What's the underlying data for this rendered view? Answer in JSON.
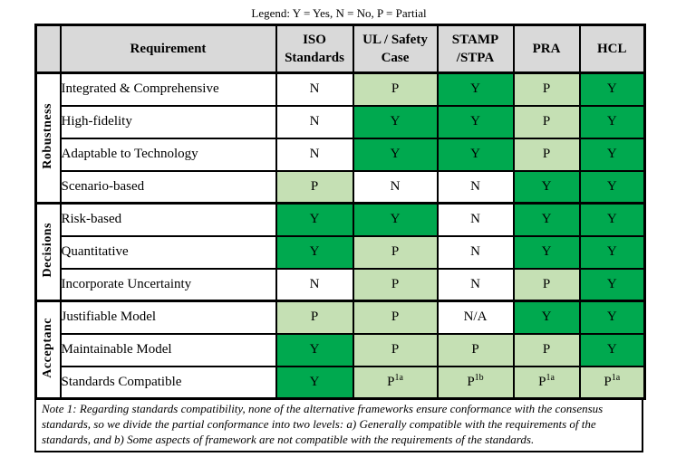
{
  "legend": "Legend: Y = Yes, N = No, P = Partial",
  "colors": {
    "yes": "#00A94F",
    "partial": "#C5E0B4",
    "no": "#FFFFFF",
    "header_bg": "#D9D9D9"
  },
  "table": {
    "header": {
      "requirement": "Requirement",
      "columns": [
        "ISO\nStandards",
        "UL / Safety\nCase",
        "STAMP\n/STPA",
        "PRA",
        "HCL"
      ]
    },
    "groups": [
      {
        "label": "Robustness",
        "rows": [
          {
            "requirement": "Integrated & Comprehensive",
            "cells": [
              {
                "v": "N",
                "bg": "no"
              },
              {
                "v": "P",
                "bg": "partial"
              },
              {
                "v": "Y",
                "bg": "yes"
              },
              {
                "v": "P",
                "bg": "partial"
              },
              {
                "v": "Y",
                "bg": "yes"
              }
            ]
          },
          {
            "requirement": "High-fidelity",
            "cells": [
              {
                "v": "N",
                "bg": "no"
              },
              {
                "v": "Y",
                "bg": "yes"
              },
              {
                "v": "Y",
                "bg": "yes"
              },
              {
                "v": "P",
                "bg": "partial"
              },
              {
                "v": "Y",
                "bg": "yes"
              }
            ]
          },
          {
            "requirement": "Adaptable to Technology",
            "cells": [
              {
                "v": "N",
                "bg": "no"
              },
              {
                "v": "Y",
                "bg": "yes"
              },
              {
                "v": "Y",
                "bg": "yes"
              },
              {
                "v": "P",
                "bg": "partial"
              },
              {
                "v": "Y",
                "bg": "yes"
              }
            ]
          },
          {
            "requirement": "Scenario-based",
            "cells": [
              {
                "v": "P",
                "bg": "partial"
              },
              {
                "v": "N",
                "bg": "no"
              },
              {
                "v": "N",
                "bg": "no"
              },
              {
                "v": "Y",
                "bg": "yes"
              },
              {
                "v": "Y",
                "bg": "yes"
              }
            ]
          }
        ]
      },
      {
        "label": "Decisions",
        "rows": [
          {
            "requirement": "Risk-based",
            "cells": [
              {
                "v": "Y",
                "bg": "yes"
              },
              {
                "v": "Y",
                "bg": "yes"
              },
              {
                "v": "N",
                "bg": "no"
              },
              {
                "v": "Y",
                "bg": "yes"
              },
              {
                "v": "Y",
                "bg": "yes"
              }
            ]
          },
          {
            "requirement": "Quantitative",
            "cells": [
              {
                "v": "Y",
                "bg": "yes"
              },
              {
                "v": "P",
                "bg": "partial"
              },
              {
                "v": "N",
                "bg": "no"
              },
              {
                "v": "Y",
                "bg": "yes"
              },
              {
                "v": "Y",
                "bg": "yes"
              }
            ]
          },
          {
            "requirement": "Incorporate Uncertainty",
            "cells": [
              {
                "v": "N",
                "bg": "no"
              },
              {
                "v": "P",
                "bg": "partial"
              },
              {
                "v": "N",
                "bg": "no"
              },
              {
                "v": "P",
                "bg": "partial"
              },
              {
                "v": "Y",
                "bg": "yes"
              }
            ]
          }
        ]
      },
      {
        "label": "Acceptanc",
        "rows": [
          {
            "requirement": "Justifiable Model",
            "cells": [
              {
                "v": "P",
                "bg": "partial"
              },
              {
                "v": "P",
                "bg": "partial"
              },
              {
                "v": "N/A",
                "bg": "no"
              },
              {
                "v": "Y",
                "bg": "yes"
              },
              {
                "v": "Y",
                "bg": "yes"
              }
            ]
          },
          {
            "requirement": "Maintainable Model",
            "cells": [
              {
                "v": "Y",
                "bg": "yes"
              },
              {
                "v": "P",
                "bg": "partial"
              },
              {
                "v": "P",
                "bg": "partial"
              },
              {
                "v": "P",
                "bg": "partial"
              },
              {
                "v": "Y",
                "bg": "yes"
              }
            ]
          },
          {
            "requirement": "Standards Compatible",
            "cells": [
              {
                "v": "Y",
                "bg": "yes"
              },
              {
                "v": "P",
                "sup": "1a",
                "bg": "partial"
              },
              {
                "v": "P",
                "sup": "1b",
                "bg": "partial"
              },
              {
                "v": "P",
                "sup": "1a",
                "bg": "partial"
              },
              {
                "v": "P",
                "sup": "1a",
                "bg": "partial"
              }
            ]
          }
        ]
      }
    ]
  },
  "note": "Note 1: Regarding standards compatibility, none of the alternative frameworks ensure conformance with the consensus standards, so we divide the partial conformance into two levels: a) Generally compatible with the requirements of the standards, and b) Some aspects of framework are not compatible with the requirements of the standards."
}
